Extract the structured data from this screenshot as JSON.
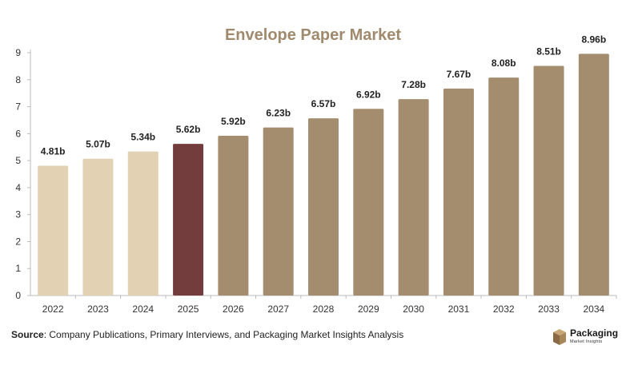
{
  "chart_data": {
    "type": "bar",
    "title": "Envelope Paper Market",
    "categories": [
      "2022",
      "2023",
      "2024",
      "2025",
      "2026",
      "2027",
      "2028",
      "2029",
      "2030",
      "2031",
      "2032",
      "2033",
      "2034"
    ],
    "values": [
      4.81,
      5.07,
      5.34,
      5.62,
      5.92,
      6.23,
      6.57,
      6.92,
      7.28,
      7.67,
      8.08,
      8.51,
      8.96
    ],
    "data_labels": [
      "4.81b",
      "5.07b",
      "5.34b",
      "5.62b",
      "5.92b",
      "6.23b",
      "6.57b",
      "6.92b",
      "7.28b",
      "7.67b",
      "8.08b",
      "8.51b",
      "8.96b"
    ],
    "bar_colors": [
      "#e3d1b3",
      "#e3d1b3",
      "#e3d1b3",
      "#733d3e",
      "#a48d6e",
      "#a48d6e",
      "#a48d6e",
      "#a48d6e",
      "#a48d6e",
      "#a48d6e",
      "#a48d6e",
      "#a48d6e",
      "#a48d6e"
    ],
    "ylim": [
      0,
      9
    ],
    "yticks": [
      0,
      1,
      2,
      3,
      4,
      5,
      6,
      7,
      8,
      9
    ],
    "xlabel": "",
    "ylabel": "",
    "grid": false,
    "title_color": "#a08a6d"
  },
  "footer": {
    "source_label": "Source",
    "source_text": ": Company Publications, Primary Interviews, and Packaging Market Insights Analysis"
  },
  "logo": {
    "brand": "Packaging",
    "tagline": "Market Insights",
    "icon": "package-cube-icon"
  }
}
